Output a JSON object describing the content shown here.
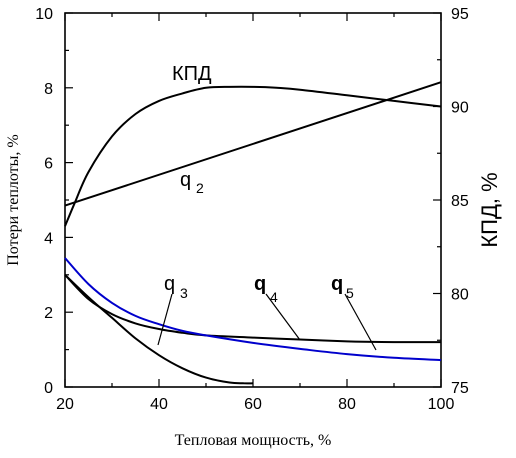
{
  "chart_data": {
    "type": "line",
    "xlabel": "Тепловая мощность, %",
    "ylabel_left": "Потери теплоты, %",
    "ylabel_right": "КПД, %",
    "x_ticks": [
      20,
      40,
      60,
      80,
      100
    ],
    "y_left_ticks": [
      0,
      2,
      4,
      6,
      8,
      10
    ],
    "y_right_ticks": [
      75,
      80,
      85,
      90,
      95
    ],
    "xlim": [
      20,
      100
    ],
    "ylim_left": [
      0,
      10
    ],
    "ylim_right": [
      75,
      95
    ],
    "grid": false,
    "series": [
      {
        "name": "КПД",
        "axis": "right",
        "color": "#000000",
        "x": [
          20,
          22,
          25,
          30,
          35,
          40,
          45,
          50,
          55,
          60,
          65,
          70,
          80,
          90,
          100
        ],
        "y": [
          83.6,
          84.8,
          86.5,
          88.4,
          89.6,
          90.3,
          90.7,
          91.0,
          91.05,
          91.05,
          91.0,
          90.9,
          90.6,
          90.3,
          90.0
        ]
      },
      {
        "name": "q2",
        "axis": "left",
        "color": "#000000",
        "x": [
          20,
          100
        ],
        "y": [
          4.85,
          8.15
        ]
      },
      {
        "name": "q3",
        "axis": "left",
        "color": "#000000",
        "x": [
          20,
          25,
          30,
          35,
          40,
          45,
          50,
          55,
          58,
          60
        ],
        "y": [
          3.0,
          2.4,
          1.85,
          1.3,
          0.85,
          0.5,
          0.25,
          0.12,
          0.1,
          0.1
        ]
      },
      {
        "name": "q4",
        "axis": "left",
        "color": "#000000",
        "x": [
          20,
          25,
          30,
          35,
          40,
          45,
          50,
          60,
          70,
          80,
          90,
          100
        ],
        "y": [
          3.0,
          2.35,
          1.95,
          1.7,
          1.55,
          1.45,
          1.38,
          1.32,
          1.27,
          1.22,
          1.2,
          1.2
        ]
      },
      {
        "name": "q5",
        "axis": "left",
        "color": "#0000cc",
        "x": [
          20,
          25,
          30,
          35,
          40,
          45,
          50,
          60,
          70,
          80,
          90,
          100
        ],
        "y": [
          3.45,
          2.75,
          2.25,
          1.9,
          1.68,
          1.5,
          1.38,
          1.18,
          1.02,
          0.88,
          0.78,
          0.72
        ]
      }
    ],
    "annotations": [
      {
        "main": "КПД",
        "sub": ""
      },
      {
        "main": "q",
        "sub": "2"
      },
      {
        "main": "q",
        "sub": "3"
      },
      {
        "main": "q",
        "sub": "4"
      },
      {
        "main": "q",
        "sub": "5"
      }
    ]
  }
}
